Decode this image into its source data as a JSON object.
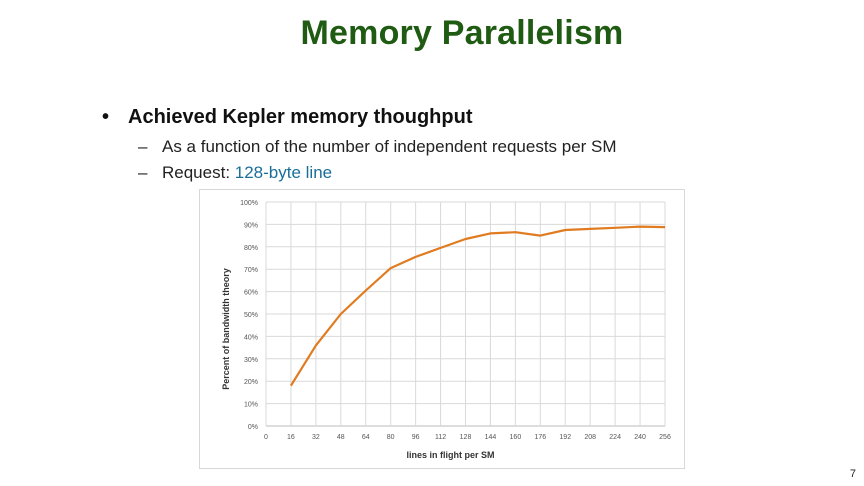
{
  "slide": {
    "title": "Memory Parallelism",
    "bullet1": "Achieved Kepler memory thoughput",
    "bullet1_marker": "•",
    "sub_marker": "–",
    "sub1": "As a function of the number of independent requests per SM",
    "sub2_prefix": "Request: ",
    "sub2_accent": "128-byte line",
    "page_number": "7",
    "accent_color": "#1a6e9a",
    "title_color": "#1f5b12"
  },
  "chart_data": {
    "type": "line",
    "xlabel": "lines in flight per SM",
    "ylabel": "Percent of bandwidth theory",
    "x_ticks": [
      0,
      16,
      32,
      48,
      64,
      80,
      96,
      112,
      128,
      144,
      160,
      176,
      192,
      208,
      224,
      240,
      256
    ],
    "y_ticks": [
      "0%",
      "10%",
      "20%",
      "30%",
      "40%",
      "50%",
      "60%",
      "70%",
      "80%",
      "90%",
      "100%"
    ],
    "xlim": [
      0,
      256
    ],
    "ylim": [
      0,
      100
    ],
    "grid": true,
    "line_color": "#e07b20",
    "series": [
      {
        "x": [
          16,
          32,
          48,
          64,
          80,
          96,
          112,
          128,
          144,
          160,
          176,
          192,
          208,
          224,
          240,
          256
        ],
        "values": [
          18,
          36,
          50,
          60.5,
          70.5,
          75.5,
          79.5,
          83.5,
          86,
          86.5,
          85,
          87.5,
          88,
          88.5,
          89,
          88.8
        ]
      }
    ]
  }
}
